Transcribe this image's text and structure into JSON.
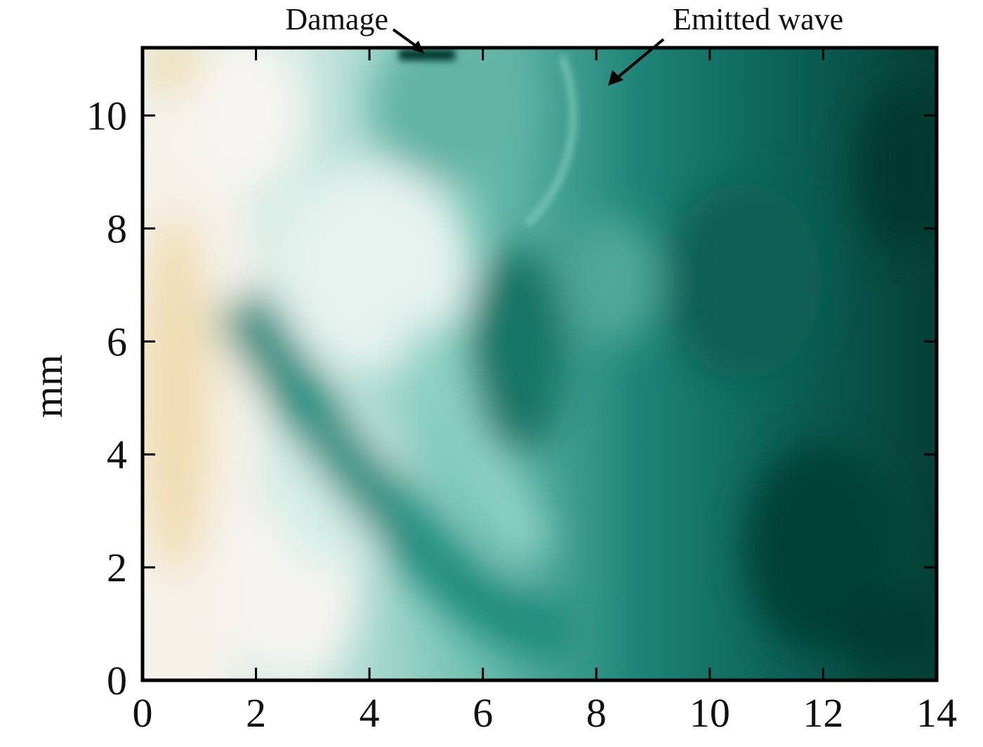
{
  "chart_data": {
    "type": "heatmap",
    "title": "",
    "xlabel": "",
    "ylabel": "mm",
    "xlim": [
      0,
      14
    ],
    "ylim": [
      0,
      11.2
    ],
    "x_ticks": [
      0,
      2,
      4,
      6,
      8,
      10,
      12,
      14
    ],
    "y_ticks": [
      0,
      2,
      4,
      6,
      8,
      10
    ],
    "x_tick_labels": [
      "0",
      "2",
      "4",
      "6",
      "8",
      "10",
      "12",
      "14"
    ],
    "y_tick_labels": [
      "0",
      "2",
      "4",
      "6",
      "8",
      "10"
    ],
    "colormap": {
      "low": "#f0dcb0",
      "mid": "#f4f6f4",
      "high": "#023a32",
      "description": "diverging: tan (low) through white to dark teal (high)"
    },
    "annotations": [
      {
        "text": "Damage",
        "target": [
          5.0,
          11.2
        ]
      },
      {
        "text": "Emitted wave",
        "target": [
          8.2,
          10.6
        ]
      }
    ],
    "grid": false
  }
}
